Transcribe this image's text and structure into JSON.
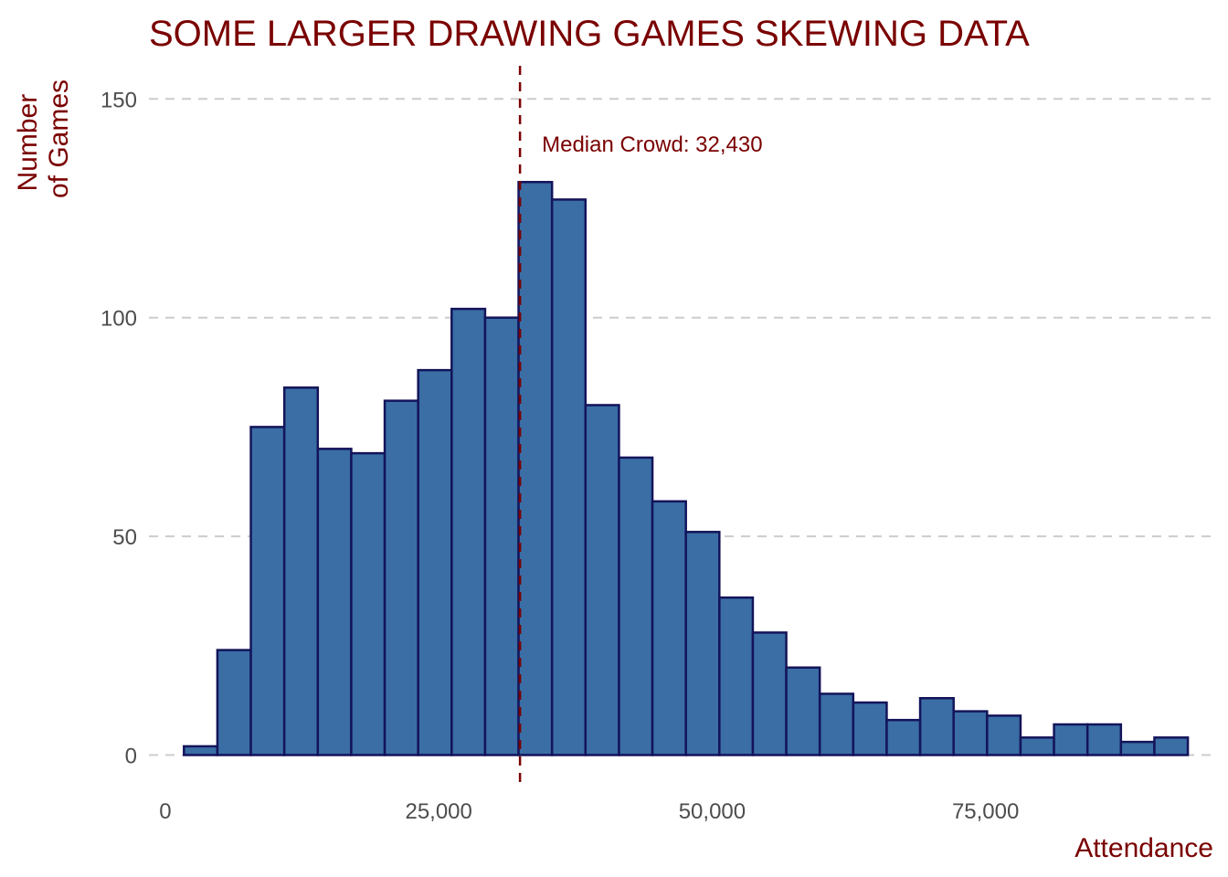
{
  "chart_data": {
    "type": "bar",
    "subtype": "histogram",
    "title": "SOME LARGER DRAWING GAMES SKEWING DATA",
    "xlabel": "Attendance",
    "ylabel": [
      "Number",
      "of Games"
    ],
    "xlim": [
      -1500,
      96000
    ],
    "ylim": [
      -7,
      158
    ],
    "x_ticks": [
      {
        "value": 0,
        "label": "0"
      },
      {
        "value": 25000,
        "label": "25,000"
      },
      {
        "value": 50000,
        "label": "50,000"
      },
      {
        "value": 75000,
        "label": "75,000"
      }
    ],
    "y_ticks": [
      {
        "value": 0,
        "label": "0"
      },
      {
        "value": 50,
        "label": "50"
      },
      {
        "value": 100,
        "label": "100"
      },
      {
        "value": 150,
        "label": "150"
      }
    ],
    "grid": {
      "horizontal": true,
      "vertical": false,
      "style": "dashed"
    },
    "bin_start": 1700,
    "bin_width": 3060,
    "values": [
      2,
      24,
      75,
      84,
      70,
      69,
      81,
      88,
      102,
      100,
      131,
      127,
      80,
      68,
      58,
      51,
      36,
      28,
      20,
      14,
      12,
      8,
      13,
      10,
      9,
      4,
      7,
      7,
      3,
      4
    ],
    "median": {
      "value": 32430,
      "label": "Median Crowd: 32,430"
    },
    "colors": {
      "bar_fill": "#3a6ea5",
      "bar_stroke": "#14145a",
      "accent": "#7a0000"
    }
  }
}
